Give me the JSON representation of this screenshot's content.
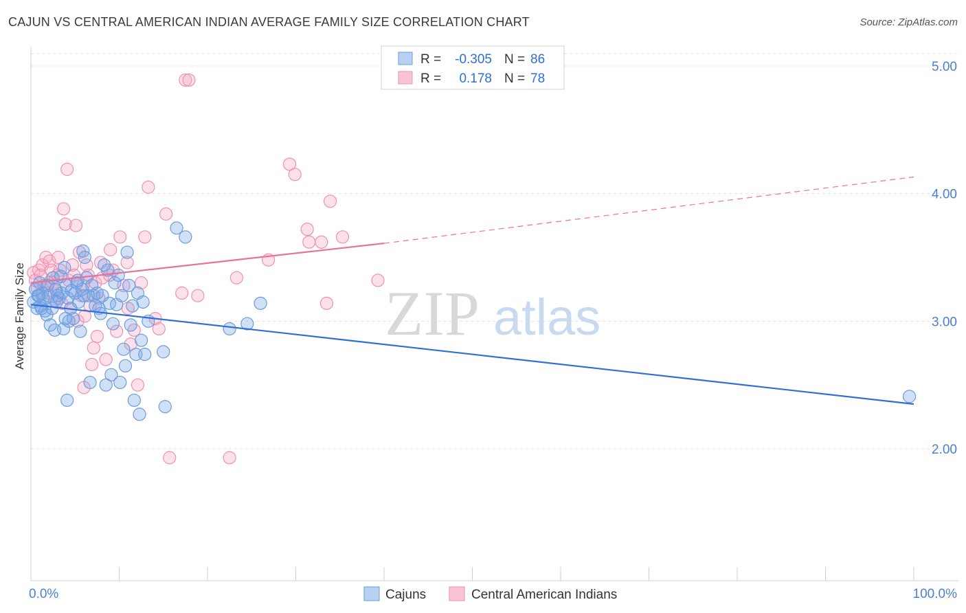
{
  "header": {
    "title": "CAJUN VS CENTRAL AMERICAN INDIAN AVERAGE FAMILY SIZE CORRELATION CHART",
    "source": "Source: ZipAtlas.com"
  },
  "watermark": {
    "zip": "ZIP",
    "atlas": "atlas"
  },
  "legend_top": {
    "rows": [
      {
        "r_label": "R =",
        "r_value": "-0.305",
        "n_label": "N =",
        "n_value": "86"
      },
      {
        "r_label": "R =",
        "r_value": "0.178",
        "n_label": "N =",
        "n_value": "78"
      }
    ]
  },
  "chart_data": {
    "type": "scatter",
    "title": "CAJUN VS CENTRAL AMERICAN INDIAN AVERAGE FAMILY SIZE CORRELATION CHART",
    "xlabel": "",
    "ylabel": "Average Family Size",
    "xlim": [
      0,
      100
    ],
    "ylim": [
      1.0,
      5.15
    ],
    "x_tick_labels": [
      "0.0%",
      "100.0%"
    ],
    "y_ticks": [
      2.0,
      3.0,
      4.0,
      5.0
    ],
    "y_tick_labels": [
      "2.00",
      "3.00",
      "4.00",
      "5.00"
    ],
    "grid": "horizontal dashed",
    "legend_position": "top-center",
    "colors": {
      "cajuns": "#6a9de0",
      "central": "#f08fb0",
      "cajuns_line": "#2e6fd6",
      "central_line": "#e8709a"
    },
    "series": [
      {
        "name": "Cajuns",
        "r": -0.305,
        "n": 86,
        "trend": {
          "x": [
            0,
            100
          ],
          "y": [
            3.13,
            2.35
          ]
        },
        "points": [
          [
            0.3,
            3.15
          ],
          [
            0.5,
            3.25
          ],
          [
            0.7,
            3.1
          ],
          [
            0.8,
            3.2
          ],
          [
            1.0,
            3.3
          ],
          [
            1.1,
            3.12
          ],
          [
            1.3,
            3.22
          ],
          [
            1.4,
            3.18
          ],
          [
            1.6,
            3.08
          ],
          [
            1.8,
            3.05
          ],
          [
            1.9,
            3.28
          ],
          [
            2.0,
            3.2
          ],
          [
            2.2,
            2.97
          ],
          [
            2.4,
            3.1
          ],
          [
            2.5,
            3.34
          ],
          [
            2.7,
            2.93
          ],
          [
            2.8,
            3.25
          ],
          [
            3.0,
            3.2
          ],
          [
            3.2,
            3.18
          ],
          [
            3.4,
            3.35
          ],
          [
            3.5,
            3.22
          ],
          [
            3.7,
            2.94
          ],
          [
            3.8,
            3.42
          ],
          [
            4.0,
            3.28
          ],
          [
            4.2,
            3.18
          ],
          [
            4.3,
            3.0
          ],
          [
            4.5,
            3.1
          ],
          [
            4.6,
            3.24
          ],
          [
            4.8,
            3.02
          ],
          [
            5.0,
            3.22
          ],
          [
            5.2,
            3.3
          ],
          [
            5.4,
            3.15
          ],
          [
            5.6,
            2.92
          ],
          [
            5.8,
            3.25
          ],
          [
            5.9,
            3.55
          ],
          [
            6.1,
            3.5
          ],
          [
            6.3,
            3.34
          ],
          [
            6.5,
            3.2
          ],
          [
            6.7,
            2.52
          ],
          [
            6.9,
            3.28
          ],
          [
            7.1,
            3.2
          ],
          [
            7.3,
            3.12
          ],
          [
            7.5,
            3.22
          ],
          [
            7.7,
            3.1
          ],
          [
            7.9,
            3.06
          ],
          [
            8.1,
            3.2
          ],
          [
            8.3,
            3.44
          ],
          [
            8.5,
            2.5
          ],
          [
            8.7,
            3.4
          ],
          [
            8.9,
            3.14
          ],
          [
            9.1,
            2.58
          ],
          [
            9.3,
            2.98
          ],
          [
            9.5,
            3.3
          ],
          [
            9.7,
            3.13
          ],
          [
            9.9,
            3.36
          ],
          [
            10.1,
            2.52
          ],
          [
            10.3,
            3.2
          ],
          [
            10.5,
            2.78
          ],
          [
            10.7,
            2.65
          ],
          [
            10.9,
            3.54
          ],
          [
            11.1,
            3.28
          ],
          [
            11.3,
            2.97
          ],
          [
            11.5,
            3.12
          ],
          [
            11.7,
            2.38
          ],
          [
            11.9,
            2.74
          ],
          [
            12.1,
            3.22
          ],
          [
            12.3,
            2.27
          ],
          [
            12.5,
            2.85
          ],
          [
            12.7,
            3.15
          ],
          [
            12.9,
            2.74
          ],
          [
            13.3,
            3.0
          ],
          [
            15.0,
            2.76
          ],
          [
            15.2,
            2.33
          ],
          [
            16.5,
            3.73
          ],
          [
            17.5,
            3.66
          ],
          [
            22.5,
            2.94
          ],
          [
            24.5,
            2.98
          ],
          [
            26.0,
            3.14
          ],
          [
            4.1,
            2.38
          ],
          [
            3.9,
            3.02
          ],
          [
            6.0,
            3.2
          ],
          [
            2.9,
            3.15
          ],
          [
            1.2,
            3.1
          ],
          [
            0.9,
            3.2
          ],
          [
            99.5,
            2.41
          ],
          [
            5.3,
            3.32
          ]
        ]
      },
      {
        "name": "Central American Indians",
        "r": 0.178,
        "n": 78,
        "trend_solid": {
          "x": [
            0,
            40
          ],
          "y": [
            3.3,
            3.61
          ]
        },
        "trend_dashed": {
          "x": [
            40,
            100
          ],
          "y": [
            3.61,
            4.13
          ]
        },
        "points": [
          [
            0.3,
            3.38
          ],
          [
            0.5,
            3.32
          ],
          [
            0.7,
            3.26
          ],
          [
            0.9,
            3.4
          ],
          [
            1.1,
            3.36
          ],
          [
            1.3,
            3.44
          ],
          [
            1.5,
            3.28
          ],
          [
            1.7,
            3.5
          ],
          [
            1.9,
            3.22
          ],
          [
            2.1,
            3.47
          ],
          [
            2.3,
            3.4
          ],
          [
            2.5,
            3.3
          ],
          [
            2.7,
            3.16
          ],
          [
            2.9,
            3.24
          ],
          [
            3.1,
            3.5
          ],
          [
            3.3,
            3.4
          ],
          [
            3.5,
            3.14
          ],
          [
            3.7,
            3.88
          ],
          [
            3.9,
            3.76
          ],
          [
            4.1,
            4.19
          ],
          [
            4.3,
            3.32
          ],
          [
            4.5,
            3.1
          ],
          [
            4.7,
            3.44
          ],
          [
            4.9,
            3.36
          ],
          [
            5.1,
            3.75
          ],
          [
            5.3,
            3.0
          ],
          [
            5.5,
            3.54
          ],
          [
            5.7,
            3.2
          ],
          [
            5.9,
            3.28
          ],
          [
            6.1,
            3.04
          ],
          [
            6.3,
            3.44
          ],
          [
            6.5,
            3.36
          ],
          [
            6.7,
            3.12
          ],
          [
            6.9,
            2.66
          ],
          [
            7.1,
            2.79
          ],
          [
            7.3,
            3.3
          ],
          [
            7.5,
            2.88
          ],
          [
            7.7,
            3.18
          ],
          [
            7.9,
            3.46
          ],
          [
            8.1,
            3.34
          ],
          [
            8.5,
            2.7
          ],
          [
            8.9,
            3.36
          ],
          [
            9.3,
            3.4
          ],
          [
            9.7,
            2.92
          ],
          [
            10.1,
            3.66
          ],
          [
            10.5,
            3.28
          ],
          [
            10.9,
            3.46
          ],
          [
            11.3,
            2.82
          ],
          [
            11.7,
            2.93
          ],
          [
            12.1,
            2.5
          ],
          [
            12.9,
            3.66
          ],
          [
            13.3,
            4.05
          ],
          [
            14.1,
            3.02
          ],
          [
            14.5,
            2.94
          ],
          [
            15.3,
            3.84
          ],
          [
            15.7,
            1.93
          ],
          [
            17.1,
            3.22
          ],
          [
            17.5,
            4.89
          ],
          [
            17.9,
            4.89
          ],
          [
            18.9,
            3.2
          ],
          [
            22.5,
            1.93
          ],
          [
            23.3,
            3.34
          ],
          [
            26.9,
            3.48
          ],
          [
            29.3,
            4.23
          ],
          [
            29.9,
            4.15
          ],
          [
            31.3,
            3.72
          ],
          [
            31.5,
            3.62
          ],
          [
            32.9,
            3.62
          ],
          [
            33.9,
            3.94
          ],
          [
            33.5,
            3.14
          ],
          [
            35.3,
            3.66
          ],
          [
            39.3,
            3.32
          ],
          [
            6.0,
            2.48
          ],
          [
            9.0,
            3.56
          ],
          [
            11.0,
            3.1
          ],
          [
            12.5,
            3.3
          ],
          [
            2.0,
            3.3
          ],
          [
            3.0,
            3.36
          ]
        ]
      }
    ]
  },
  "legend_bottom": {
    "items": [
      "Cajuns",
      "Central American Indians"
    ]
  }
}
